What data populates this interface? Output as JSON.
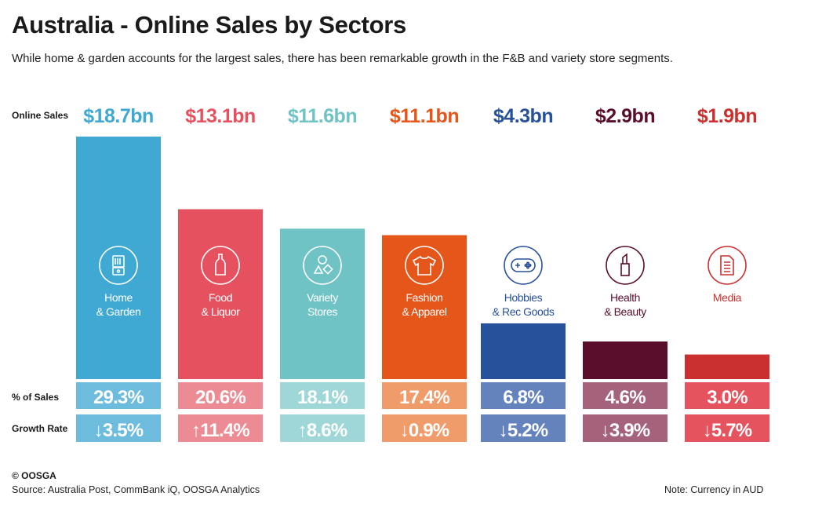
{
  "title": "Australia - Online Sales by Sectors",
  "subtitle": "While home & garden accounts for the largest sales, there has been remarkable growth in the F&B and variety store segments.",
  "row_labels": {
    "online_sales": "Online Sales",
    "pct_sales": "% of Sales",
    "growth": "Growth Rate"
  },
  "footer": {
    "copyright": "© OOSGA",
    "source": "Source: Australia Post, CommBank iQ, OOSGA Analytics",
    "note": "Note:  Currency in AUD"
  },
  "chart_data": {
    "type": "bar",
    "title": "Australia - Online Sales by Sectors",
    "unit": "AUD bn",
    "categories": [
      "Home & Garden",
      "Food & Liquor",
      "Variety Stores",
      "Fashion & Apparel",
      "Hobbies & Rec Goods",
      "Health & Beauty",
      "Media"
    ],
    "label_lines": [
      [
        "Home",
        "& Garden"
      ],
      [
        "Food",
        "& Liquor"
      ],
      [
        "Variety",
        "Stores"
      ],
      [
        "Fashion",
        "& Apparel"
      ],
      [
        "Hobbies",
        "& Rec Goods"
      ],
      [
        "Health",
        "& Beauty"
      ],
      [
        "Media"
      ]
    ],
    "values": [
      18.7,
      13.1,
      11.6,
      11.1,
      4.3,
      2.9,
      1.9
    ],
    "value_labels": [
      "$18.7bn",
      "$13.1bn",
      "$11.6bn",
      "$11.1bn",
      "$4.3bn",
      "$2.9bn",
      "$1.9bn"
    ],
    "pct_of_sales": [
      "29.3%",
      "20.6%",
      "18.1%",
      "17.4%",
      "6.8%",
      "4.6%",
      "3.0%"
    ],
    "growth_rate": [
      "↓3.5%",
      "↑11.4%",
      "↑8.6%",
      "↓0.9%",
      "↓5.2%",
      "↓3.9%",
      "↓5.7%"
    ],
    "growth_values": [
      -3.5,
      11.4,
      8.6,
      -0.9,
      -5.2,
      -3.9,
      -5.7
    ],
    "icons": [
      "blender-icon",
      "bottle-icon",
      "shapes-icon",
      "tshirt-icon",
      "gamepad-icon",
      "lipstick-icon",
      "document-icon"
    ],
    "colors": [
      "#3fa8d3",
      "#e5515f",
      "#6fc3c5",
      "#e5561b",
      "#28519b",
      "#5a0e2b",
      "#c9302f"
    ],
    "light_colors": [
      "#6dbcde",
      "#ec8b93",
      "#9fd6d7",
      "#ef9c6a",
      "#6482bb",
      "#a5627b",
      "#e5535f"
    ],
    "ylim": [
      0,
      18.7
    ]
  }
}
